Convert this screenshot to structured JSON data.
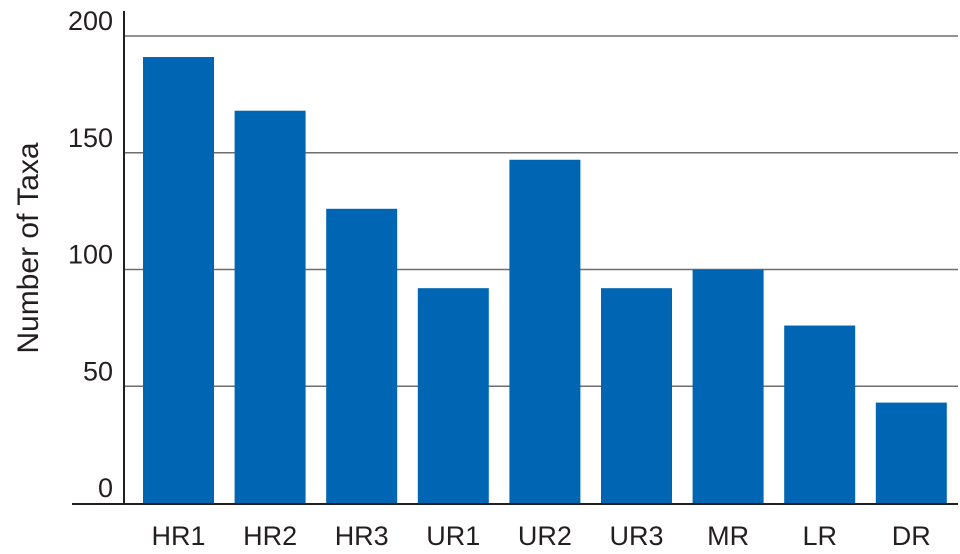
{
  "chart_data": {
    "type": "bar",
    "title": "",
    "xlabel": "",
    "ylabel": "Number of Taxa",
    "categories": [
      "HR1",
      "HR2",
      "HR3",
      "UR1",
      "UR2",
      "UR3",
      "MR",
      "LR",
      "DR"
    ],
    "values": [
      191,
      168,
      126,
      92,
      147,
      92,
      100,
      76,
      43
    ],
    "ylim": [
      0,
      200
    ],
    "yticks": [
      0,
      50,
      100,
      150,
      200
    ],
    "grid": true,
    "legend": "none",
    "bar_color": "#0066b3",
    "grid_color": "#6d6e71",
    "axis_color": "#231f20"
  }
}
